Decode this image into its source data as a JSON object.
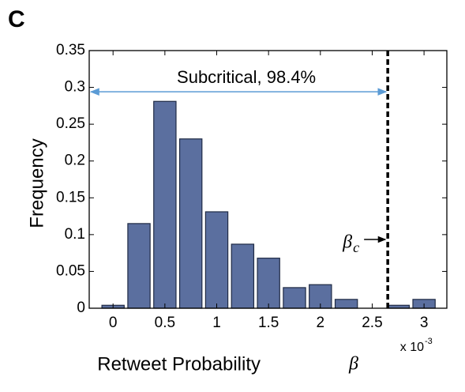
{
  "chart_data": {
    "type": "bar",
    "panel_label": "C",
    "xlabel": "Retweet Probability",
    "xlabel_symbol": "β",
    "ylabel": "Frequency",
    "x": [
      0,
      0.25,
      0.5,
      0.75,
      1,
      1.25,
      1.5,
      1.75,
      2,
      2.25,
      2.75,
      3
    ],
    "values": [
      0.004,
      0.115,
      0.281,
      0.23,
      0.131,
      0.087,
      0.068,
      0.028,
      0.032,
      0.012,
      0.004,
      0.012
    ],
    "color": "#5b6f9f",
    "xlim": [
      -0.23,
      3.22
    ],
    "xticks": [
      0,
      0.5,
      1,
      1.5,
      2,
      2.5,
      3
    ],
    "ylim": [
      0,
      0.35
    ],
    "yticks": [
      0,
      0.05,
      0.1,
      0.15,
      0.2,
      0.25,
      0.3,
      0.35
    ],
    "x_multiplier": "x 10",
    "x_multiplier_exponent": "-3",
    "critical_value": 2.65,
    "critical_symbol": "β",
    "critical_subscript": "c",
    "region_label": "Subcritical, 98.4%",
    "region_color": "#5b9bd5"
  }
}
